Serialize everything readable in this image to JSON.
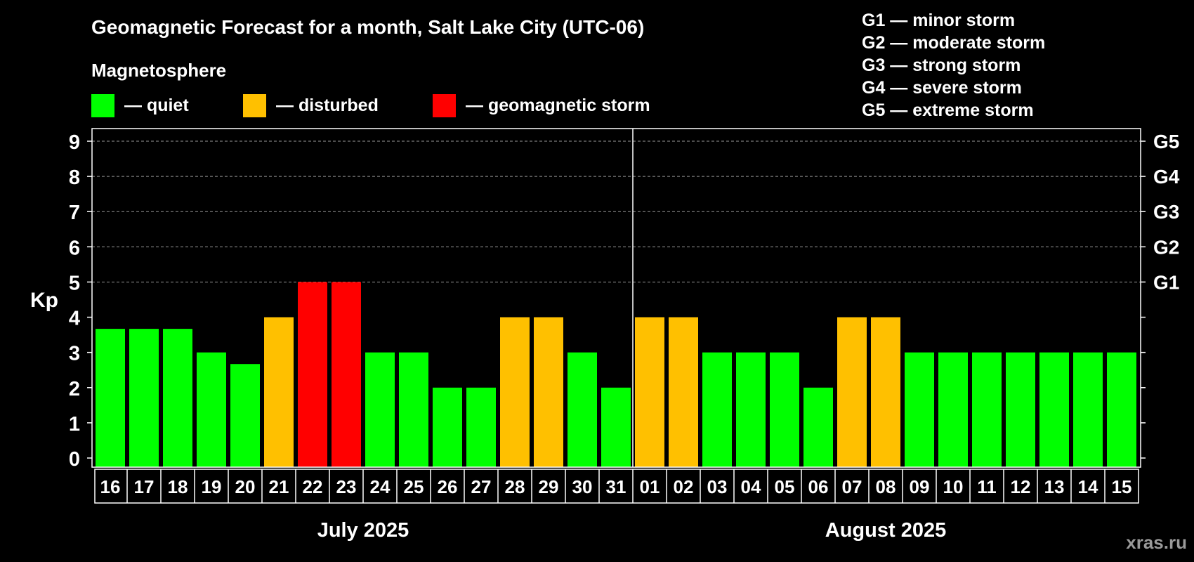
{
  "chart_data": {
    "type": "bar",
    "title": "Geomagnetic Forecast for a month, Salt Lake City (UTC-06)",
    "subtitle": "Magnetosphere",
    "ylabel": "Kp",
    "ylim": [
      0,
      9
    ],
    "yticks": [
      0,
      1,
      2,
      3,
      4,
      5,
      6,
      7,
      8,
      9
    ],
    "grid": "dashed at Kp 5-9",
    "legend": [
      {
        "label": "— quiet",
        "color": "#00ff00"
      },
      {
        "label": "— disturbed",
        "color": "#ffc000"
      },
      {
        "label": "— geomagnetic storm",
        "color": "#ff0000"
      }
    ],
    "storm_scale": [
      {
        "label": "G1 — minor storm"
      },
      {
        "label": "G2 — moderate storm"
      },
      {
        "label": "G3 — strong storm"
      },
      {
        "label": "G4 — severe storm"
      },
      {
        "label": "G5 — extreme storm"
      }
    ],
    "right_axis": [
      {
        "kp": 5,
        "label": "G1"
      },
      {
        "kp": 6,
        "label": "G2"
      },
      {
        "kp": 7,
        "label": "G3"
      },
      {
        "kp": 8,
        "label": "G4"
      },
      {
        "kp": 9,
        "label": "G5"
      }
    ],
    "months": [
      {
        "label": "July 2025",
        "days": [
          "16",
          "17",
          "18",
          "19",
          "20",
          "21",
          "22",
          "23",
          "24",
          "25",
          "26",
          "27",
          "28",
          "29",
          "30",
          "31"
        ]
      },
      {
        "label": "August 2025",
        "days": [
          "01",
          "02",
          "03",
          "04",
          "05",
          "06",
          "07",
          "08",
          "09",
          "10",
          "11",
          "12",
          "13",
          "14",
          "15"
        ]
      }
    ],
    "categories": [
      "16",
      "17",
      "18",
      "19",
      "20",
      "21",
      "22",
      "23",
      "24",
      "25",
      "26",
      "27",
      "28",
      "29",
      "30",
      "31",
      "01",
      "02",
      "03",
      "04",
      "05",
      "06",
      "07",
      "08",
      "09",
      "10",
      "11",
      "12",
      "13",
      "14",
      "15"
    ],
    "values": [
      3.67,
      3.67,
      3.67,
      3.0,
      2.67,
      4.0,
      5.0,
      5.0,
      3.0,
      3.0,
      2.0,
      2.0,
      4.0,
      4.0,
      3.0,
      2.0,
      4.0,
      4.0,
      3.0,
      3.0,
      3.0,
      2.0,
      4.0,
      4.0,
      3.0,
      3.0,
      3.0,
      3.0,
      3.0,
      3.0,
      3.0
    ],
    "colors": {
      "quiet": "#00ff00",
      "disturbed": "#ffc000",
      "storm": "#ff0000",
      "background": "#000000",
      "axis": "#ffffff",
      "grid": "#9a9a9a",
      "watermark": "#9a9a9a"
    }
  },
  "watermark": "xras.ru"
}
